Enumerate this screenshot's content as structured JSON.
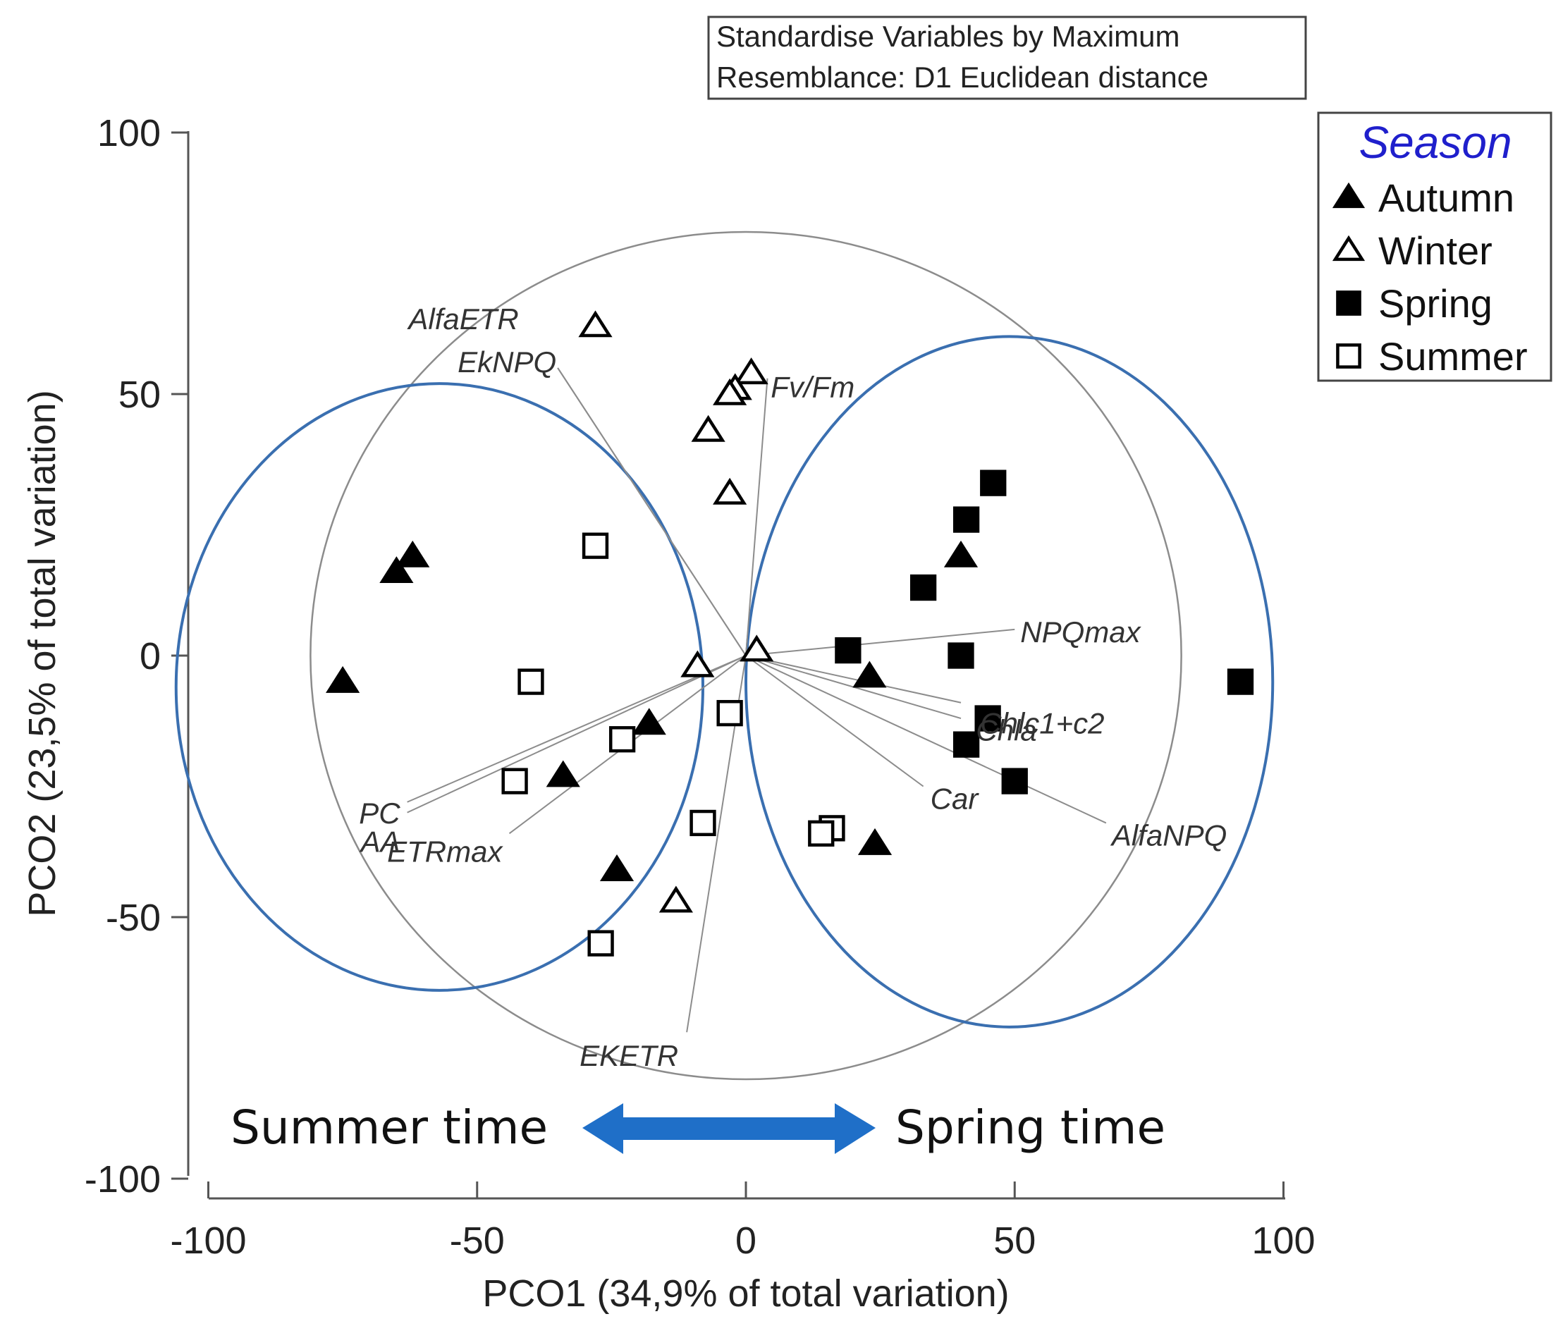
{
  "chart_data": {
    "type": "scatter",
    "xlabel": "PCO1 (34,9% of total variation)",
    "ylabel": "PCO2 (23,5% of total variation)",
    "xlim": [
      -100,
      100
    ],
    "ylim": [
      -100,
      100
    ],
    "xticks": [
      -100,
      -50,
      0,
      50,
      100
    ],
    "yticks": [
      -100,
      -50,
      0,
      50,
      100
    ],
    "info_lines": [
      "Standardise Variables by Maximum",
      "Resemblance: D1 Euclidean distance"
    ],
    "legend": {
      "title": "Season",
      "position": "top-right"
    },
    "series": [
      {
        "name": "Autumn",
        "marker": "filled-triangle",
        "points": [
          {
            "x": -62,
            "y": 19
          },
          {
            "x": -65,
            "y": 16
          },
          {
            "x": -75,
            "y": -5
          },
          {
            "x": -18,
            "y": -13
          },
          {
            "x": -34,
            "y": -23
          },
          {
            "x": -24,
            "y": -41
          },
          {
            "x": 40,
            "y": 19
          },
          {
            "x": 23,
            "y": -4
          },
          {
            "x": 24,
            "y": -36
          }
        ]
      },
      {
        "name": "Winter",
        "marker": "open-triangle",
        "points": [
          {
            "x": -28,
            "y": 63
          },
          {
            "x": 1,
            "y": 54
          },
          {
            "x": -2,
            "y": 51
          },
          {
            "x": -3,
            "y": 50
          },
          {
            "x": -7,
            "y": 43
          },
          {
            "x": -3,
            "y": 31
          },
          {
            "x": 2,
            "y": 1
          },
          {
            "x": -9,
            "y": -2
          },
          {
            "x": -13,
            "y": -47
          }
        ]
      },
      {
        "name": "Spring",
        "marker": "filled-square",
        "points": [
          {
            "x": 46,
            "y": 33
          },
          {
            "x": 41,
            "y": 26
          },
          {
            "x": 33,
            "y": 13
          },
          {
            "x": 19,
            "y": 1
          },
          {
            "x": 40,
            "y": 0
          },
          {
            "x": 45,
            "y": -12
          },
          {
            "x": 41,
            "y": -17
          },
          {
            "x": 50,
            "y": -24
          },
          {
            "x": 92,
            "y": -5
          }
        ]
      },
      {
        "name": "Summer",
        "marker": "open-square",
        "points": [
          {
            "x": -28,
            "y": 21
          },
          {
            "x": -40,
            "y": -5
          },
          {
            "x": -23,
            "y": -16
          },
          {
            "x": -3,
            "y": -11
          },
          {
            "x": -43,
            "y": -24
          },
          {
            "x": -8,
            "y": -32
          },
          {
            "x": 16,
            "y": -33
          },
          {
            "x": 14,
            "y": -34
          },
          {
            "x": -27,
            "y": -55
          }
        ]
      }
    ],
    "vectors": [
      {
        "label": "AlfaETR",
        "x": -42,
        "y": 60,
        "end_x": -35,
        "end_y": 55
      },
      {
        "label": "EkNPQ",
        "x": -35,
        "y": 55,
        "end_x": -35,
        "end_y": 55
      },
      {
        "label": "Fv/Fm",
        "x": 2,
        "y": 51,
        "end_x": 4,
        "end_y": 53
      },
      {
        "label": "NPQmax",
        "x": 50,
        "y": 5,
        "end_x": 50,
        "end_y": 5
      },
      {
        "label": "Chlc1+c2",
        "x": 42,
        "y": -13,
        "end_x": 40,
        "end_y": -9
      },
      {
        "label": "Chla",
        "x": 42,
        "y": -13,
        "end_x": 40,
        "end_y": -12
      },
      {
        "label": "Car",
        "x": 33,
        "y": -25,
        "end_x": 33,
        "end_y": -25
      },
      {
        "label": "AlfaNPQ",
        "x": 67,
        "y": -32,
        "end_x": 67,
        "end_y": -32
      },
      {
        "label": "PC",
        "x": -63,
        "y": -28,
        "end_x": -63,
        "end_y": -28
      },
      {
        "label": "AA",
        "x": -63,
        "y": -30,
        "end_x": -63,
        "end_y": -30
      },
      {
        "label": "ETRmax",
        "x": -44,
        "y": -34,
        "end_x": -44,
        "end_y": -34
      },
      {
        "label": "EKETR",
        "x": -11,
        "y": -72,
        "end_x": -11,
        "end_y": -72
      }
    ],
    "correlation_circle": {
      "cx": 0,
      "cy": 0,
      "r": 81
    },
    "groupings": [
      {
        "cx": -57,
        "cy": -6,
        "rx": 49,
        "ry": 58
      },
      {
        "cx": 49,
        "cy": -5,
        "rx": 49,
        "ry": 66
      }
    ],
    "annotations": {
      "left": "Summer time",
      "right": "Spring time"
    },
    "colors": {
      "grouping": "#3a6fb0",
      "arrow": "#1f6fc8",
      "legend_title": "#1f1fcc",
      "circle": "#8c8c8c",
      "vector": "#8c8c8c"
    }
  }
}
